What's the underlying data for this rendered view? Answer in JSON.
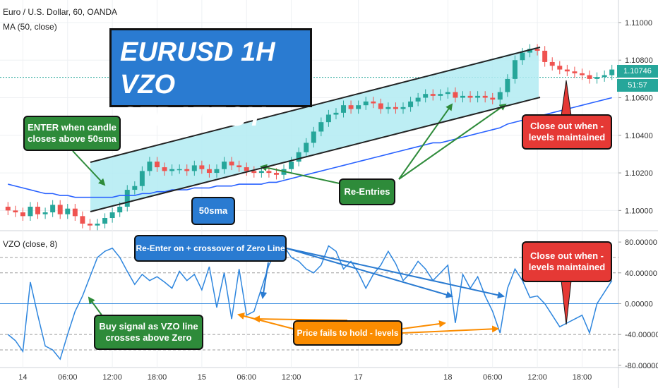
{
  "header": {
    "instrument": "Euro / U.S. Dollar, 60, OANDA",
    "indicator": "MA (50, close)",
    "lower_indicator": "VZO (close, 8)"
  },
  "title": {
    "line1": "EURUSD 1H",
    "line2": "VZO STRATEGY"
  },
  "price_axis": {
    "ticks": [
      "1.11000",
      "1.10800",
      "1.10600",
      "1.10400",
      "1.10200",
      "1.10000"
    ],
    "current_price": "1.10746",
    "countdown": "51:57"
  },
  "vzo_axis": {
    "ticks": [
      "80.00000",
      "40.00000",
      "0.00000",
      "-40.00000",
      "-80.00000"
    ]
  },
  "time_axis": {
    "ticks": [
      "14",
      "06:00",
      "12:00",
      "18:00",
      "15",
      "06:00",
      "12:00",
      "17",
      "18",
      "06:00",
      "12:00",
      "18:00"
    ]
  },
  "annotations": {
    "enter": "ENTER when candle closes above 50sma",
    "sma": "50sma",
    "re_entries": "Re-Entries",
    "close_out_upper": "Close out when - levels maintained",
    "re_enter_zero": "Re-Enter on + crossover of Zero Line",
    "buy_signal": "Buy signal as VZO line crosses above Zero",
    "price_fails": "Price fails to hold - levels",
    "close_out_lower": "Close out when - levels maintained"
  },
  "colors": {
    "bull": "#26a69a",
    "bear": "#ef5350",
    "ma": "#2962ff",
    "vzo": "#2e86de",
    "channel_fill": "#b2ebf2",
    "annotation_green": "#2e8b3a",
    "annotation_blue": "#2a7bd1",
    "annotation_red": "#e53935",
    "annotation_orange": "#fb8c00"
  },
  "chart_data": [
    {
      "type": "candlestick",
      "title": "Euro / U.S. Dollar, 60, OANDA",
      "ylim": [
        1.099,
        1.1112
      ],
      "ticks": [
        1.11,
        1.108,
        1.106,
        1.104,
        1.102,
        1.1
      ],
      "closes": [
        1.1,
        1.0999,
        1.0997,
        1.1002,
        1.0998,
        1.0999,
        1.1003,
        1.0998,
        1.1001,
        1.0997,
        1.0993,
        1.0992,
        1.0993,
        1.0996,
        1.0999,
        1.1002,
        1.1011,
        1.1013,
        1.1021,
        1.1026,
        1.1023,
        1.1021,
        1.1022,
        1.1022,
        1.1021,
        1.1024,
        1.1022,
        1.102,
        1.1022,
        1.1026,
        1.1024,
        1.1023,
        1.1021,
        1.102,
        1.1021,
        1.102,
        1.1019,
        1.1022,
        1.1026,
        1.1031,
        1.1036,
        1.1042,
        1.1047,
        1.1051,
        1.1052,
        1.1056,
        1.1054,
        1.1056,
        1.1058,
        1.1057,
        1.1054,
        1.1055,
        1.1054,
        1.1055,
        1.1058,
        1.106,
        1.1062,
        1.1061,
        1.1062,
        1.1063,
        1.106,
        1.1061,
        1.106,
        1.1061,
        1.106,
        1.1059,
        1.1063,
        1.107,
        1.108,
        1.1084,
        1.1086,
        1.1085,
        1.1079,
        1.1077,
        1.1075,
        1.1074,
        1.1073,
        1.1072,
        1.107,
        1.1071,
        1.1072,
        1.1075
      ],
      "ma50": [
        1.1014,
        1.1013,
        1.1012,
        1.1011,
        1.101,
        1.1009,
        1.1009,
        1.1008,
        1.1008,
        1.1007,
        1.1007,
        1.1007,
        1.1007,
        1.1007,
        1.1007,
        1.1008,
        1.1008,
        1.1008,
        1.1009,
        1.1009,
        1.101,
        1.101,
        1.1011,
        1.1011,
        1.1011,
        1.1012,
        1.1012,
        1.1012,
        1.1013,
        1.1013,
        1.1013,
        1.1014,
        1.1014,
        1.1014,
        1.1014,
        1.1015,
        1.1015,
        1.1016,
        1.1017,
        1.1018,
        1.1019,
        1.102,
        1.1021,
        1.1022,
        1.1023,
        1.1024,
        1.1025,
        1.1026,
        1.1027,
        1.1028,
        1.1029,
        1.103,
        1.1031,
        1.1032,
        1.1033,
        1.1034,
        1.1035,
        1.1036,
        1.1036,
        1.1037,
        1.1038,
        1.1039,
        1.104,
        1.1041,
        1.1042,
        1.1043,
        1.1044,
        1.1046,
        1.1047,
        1.1048,
        1.1049,
        1.105,
        1.1051,
        1.1052,
        1.1053,
        1.1054,
        1.1055,
        1.1056,
        1.1057,
        1.1058,
        1.1059,
        1.106
      ]
    },
    {
      "type": "line",
      "title": "VZO (close, 8)",
      "ylim": [
        -82,
        92
      ],
      "ticks": [
        80,
        40,
        0,
        -40,
        -80
      ],
      "levels": [
        60,
        40,
        -40,
        -60
      ],
      "values": [
        -40,
        -48,
        -62,
        28,
        -15,
        -55,
        -60,
        -72,
        -40,
        -10,
        10,
        35,
        60,
        68,
        72,
        60,
        42,
        25,
        38,
        30,
        35,
        28,
        20,
        42,
        30,
        38,
        18,
        48,
        -5,
        40,
        -20,
        45,
        -15,
        -10,
        20,
        50,
        70,
        75,
        60,
        55,
        45,
        40,
        50,
        75,
        68,
        45,
        55,
        40,
        20,
        38,
        50,
        68,
        52,
        30,
        40,
        55,
        45,
        30,
        40,
        50,
        -25,
        38,
        20,
        35,
        10,
        -10,
        -38,
        20,
        45,
        30,
        8,
        10,
        0,
        -15,
        -30,
        -25,
        -20,
        -15,
        -38,
        0,
        15,
        30
      ]
    }
  ]
}
